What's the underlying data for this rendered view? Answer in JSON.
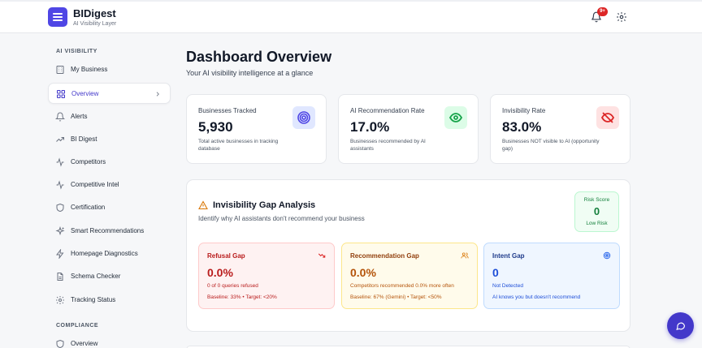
{
  "brand": {
    "name": "BIDigest",
    "subtitle": "AI Visibility Layer"
  },
  "header": {
    "notification_count": "9+"
  },
  "sidebar": {
    "section_ai": "AI VISIBILITY",
    "items": [
      {
        "label": "My Business",
        "icon": "building-icon"
      },
      {
        "label": "Overview",
        "icon": "grid-icon",
        "active": true
      },
      {
        "label": "Alerts",
        "icon": "bell-icon"
      },
      {
        "label": "BI Digest",
        "icon": "trend-icon"
      },
      {
        "label": "Competitors",
        "icon": "activity-icon"
      },
      {
        "label": "Competitive Intel",
        "icon": "activity-icon"
      },
      {
        "label": "Certification",
        "icon": "shield-icon"
      },
      {
        "label": "Smart Recommendations",
        "icon": "sparkle-icon"
      },
      {
        "label": "Homepage Diagnostics",
        "icon": "lightning-icon"
      },
      {
        "label": "Schema Checker",
        "icon": "document-icon"
      },
      {
        "label": "Tracking Status",
        "icon": "gear-icon"
      }
    ],
    "section_compliance": "COMPLIANCE",
    "compliance_items": [
      {
        "label": "Overview",
        "icon": "shield-icon"
      }
    ]
  },
  "main": {
    "title": "Dashboard Overview",
    "subtitle": "Your AI visibility intelligence at a glance",
    "stats": [
      {
        "label": "Businesses Tracked",
        "value": "5,930",
        "desc": "Total active businesses in tracking database",
        "icon": "target-icon",
        "color": "#4f46e5"
      },
      {
        "label": "AI Recommendation Rate",
        "value": "17.0%",
        "desc": "Businesses recommended by AI assistants",
        "icon": "eye-icon",
        "color": "#16a34a"
      },
      {
        "label": "Invisibility Rate",
        "value": "83.0%",
        "desc": "Businesses NOT visible to AI (opportunity gap)",
        "icon": "eye-off-icon",
        "color": "#dc2626"
      }
    ],
    "gap": {
      "title": "Invisibility Gap Analysis",
      "subtitle": "Identify why AI assistants don't recommend your business",
      "risk_label": "Risk Score",
      "risk_value": "0",
      "risk_level": "Low Risk",
      "cards": [
        {
          "title": "Refusal Gap",
          "value": "0.0%",
          "desc": "0 of 0 queries refused",
          "foot": "Baseline: 33% • Target: <20%",
          "icon": "trend-down-icon"
        },
        {
          "title": "Recommendation Gap",
          "value": "0.0%",
          "desc": "Competitors recommended 0.0% more often",
          "foot": "Baseline: 67% (Gemini) • Target: <50%",
          "icon": "users-icon"
        },
        {
          "title": "Intent Gap",
          "value": "0",
          "desc": "Not Detected",
          "foot": "AI knows you but doesn't recommend",
          "icon": "target-icon"
        }
      ]
    }
  }
}
